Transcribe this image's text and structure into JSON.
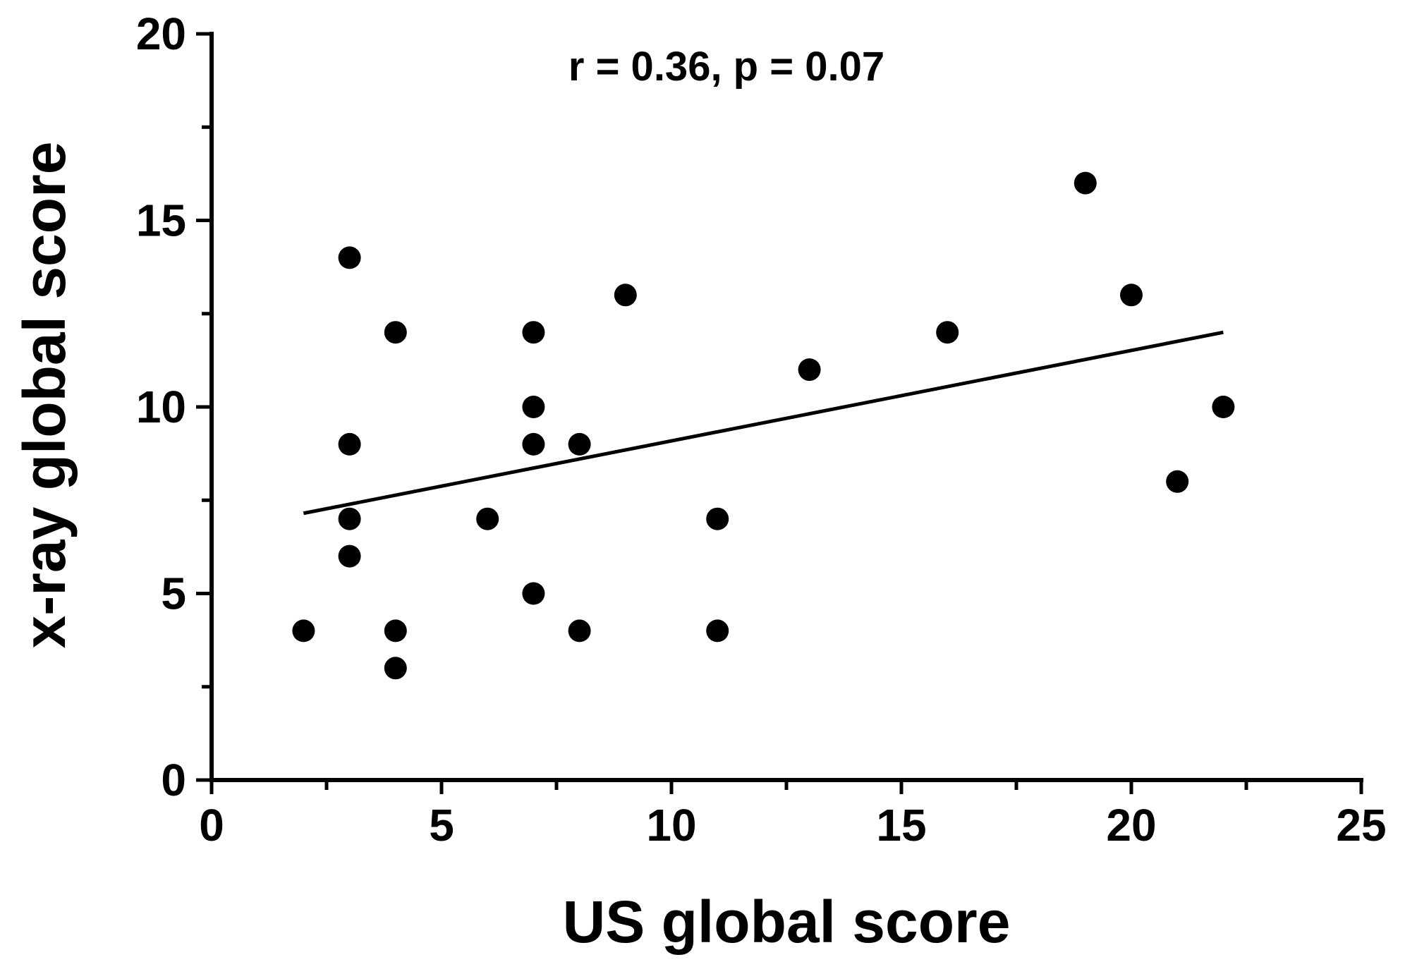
{
  "chart_data": {
    "type": "scatter",
    "title": "",
    "annotation": "r = 0.36, p = 0.07",
    "xlabel": "US global score",
    "ylabel": "x-ray global score",
    "xlim": [
      0,
      25
    ],
    "ylim": [
      0,
      20
    ],
    "x_ticks": [
      0,
      5,
      10,
      15,
      20,
      25
    ],
    "y_ticks": [
      0,
      5,
      10,
      15,
      20
    ],
    "x_tick_labels": [
      "0",
      "5",
      "10",
      "15",
      "20",
      "25"
    ],
    "y_tick_labels": [
      "0",
      "5",
      "10",
      "15",
      "20"
    ],
    "grid": false,
    "point_color": "#000000",
    "points": [
      {
        "x": 2,
        "y": 4
      },
      {
        "x": 3,
        "y": 14
      },
      {
        "x": 3,
        "y": 9
      },
      {
        "x": 3,
        "y": 7
      },
      {
        "x": 3,
        "y": 6
      },
      {
        "x": 4,
        "y": 12
      },
      {
        "x": 4,
        "y": 4
      },
      {
        "x": 4,
        "y": 3
      },
      {
        "x": 6,
        "y": 7
      },
      {
        "x": 7,
        "y": 12
      },
      {
        "x": 7,
        "y": 10
      },
      {
        "x": 7,
        "y": 9
      },
      {
        "x": 7,
        "y": 5
      },
      {
        "x": 8,
        "y": 9
      },
      {
        "x": 8,
        "y": 4
      },
      {
        "x": 9,
        "y": 13
      },
      {
        "x": 11,
        "y": 7
      },
      {
        "x": 11,
        "y": 4
      },
      {
        "x": 13,
        "y": 11
      },
      {
        "x": 16,
        "y": 12
      },
      {
        "x": 19,
        "y": 16
      },
      {
        "x": 20,
        "y": 13
      },
      {
        "x": 21,
        "y": 8
      },
      {
        "x": 22,
        "y": 10
      }
    ],
    "fit_line": {
      "x": [
        2,
        22
      ],
      "y": [
        7.15,
        12.0
      ]
    }
  }
}
